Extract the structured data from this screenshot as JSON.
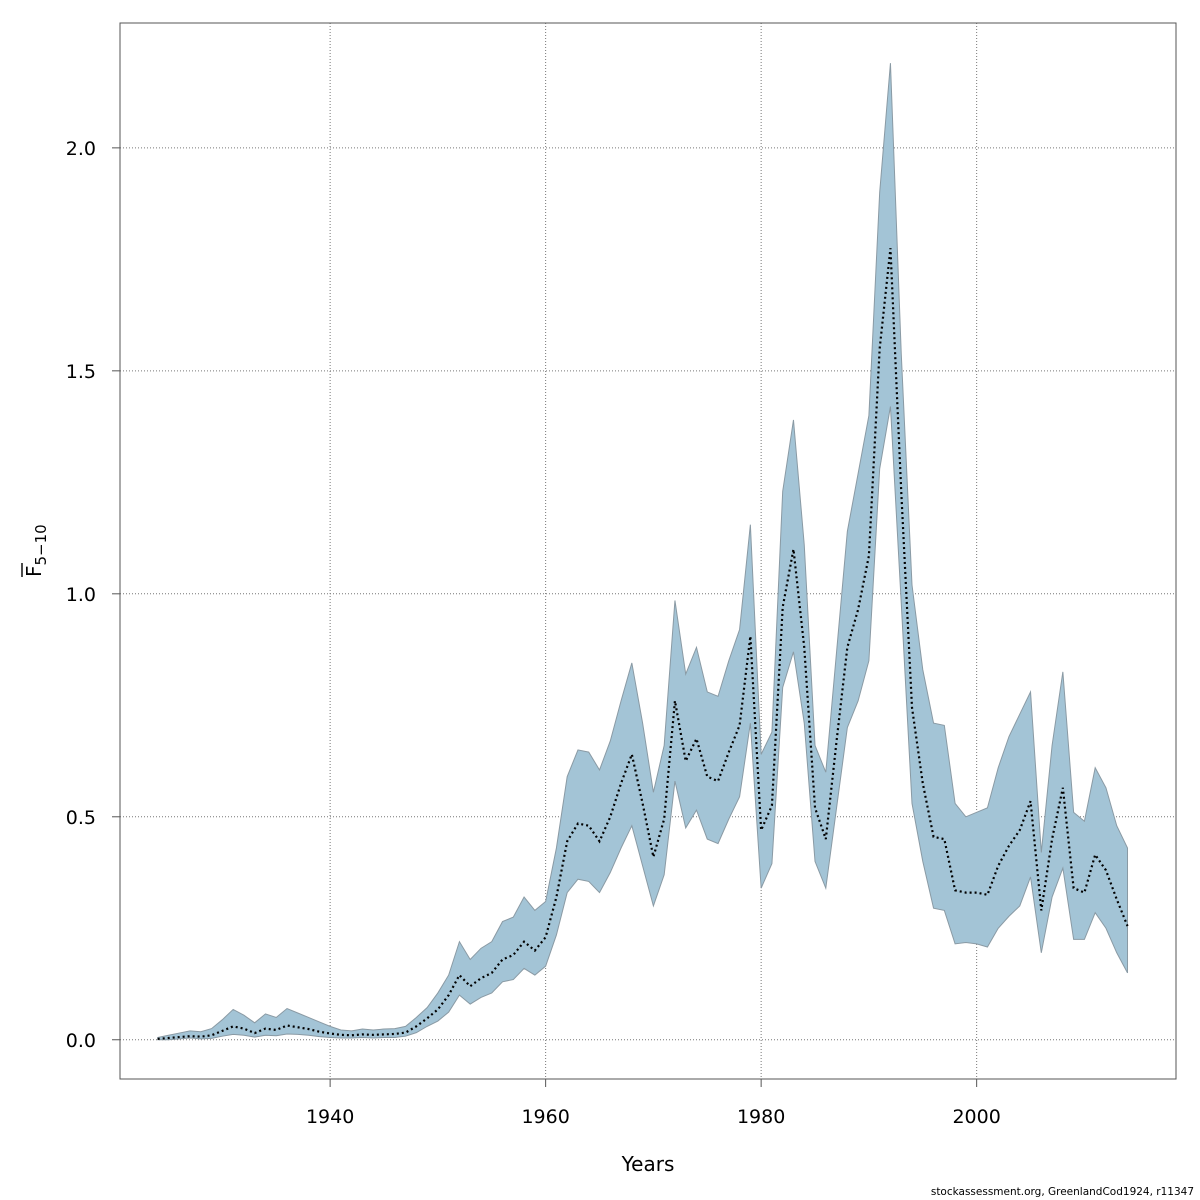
{
  "chart_data": {
    "type": "area",
    "xlabel": "Years",
    "ylabel_main": "F",
    "ylabel_sub": "5−10",
    "xlim": [
      1920.5,
      2018.5
    ],
    "ylim": [
      -0.088,
      2.28
    ],
    "x_ticks": [
      1940,
      1960,
      1980,
      2000
    ],
    "y_ticks": [
      0.0,
      0.5,
      1.0,
      1.5,
      2.0
    ],
    "x_tick_labels": [
      "1940",
      "1960",
      "1980",
      "2000"
    ],
    "y_tick_labels": [
      "0.0",
      "0.5",
      "1.0",
      "1.5",
      "2.0"
    ],
    "grid": true,
    "band_color": "#a3c4d6",
    "band_edge_color": "#8a9aa4",
    "line_color": "#000000",
    "series": [
      {
        "kind": "band",
        "x": [
          1924,
          1925,
          1926,
          1927,
          1928,
          1929,
          1930,
          1931,
          1932,
          1933,
          1934,
          1935,
          1936,
          1937,
          1938,
          1939,
          1940,
          1941,
          1942,
          1943,
          1944,
          1945,
          1946,
          1947,
          1948,
          1949,
          1950,
          1951,
          1952,
          1953,
          1954,
          1955,
          1956,
          1957,
          1958,
          1959,
          1960,
          1961,
          1962,
          1963,
          1964,
          1965,
          1966,
          1967,
          1968,
          1969,
          1970,
          1971,
          1972,
          1973,
          1974,
          1975,
          1976,
          1977,
          1978,
          1979,
          1980,
          1981,
          1982,
          1983,
          1984,
          1985,
          1986,
          1987,
          1988,
          1989,
          1990,
          1991,
          1992,
          1993,
          1994,
          1995,
          1996,
          1997,
          1998,
          1999,
          2000,
          2001,
          2002,
          2003,
          2004,
          2005,
          2006,
          2007,
          2008,
          2009,
          2010,
          2011,
          2012,
          2013,
          2014
        ],
        "upper": [
          0.005,
          0.01,
          0.015,
          0.02,
          0.018,
          0.025,
          0.045,
          0.068,
          0.055,
          0.038,
          0.058,
          0.05,
          0.07,
          0.06,
          0.05,
          0.04,
          0.03,
          0.022,
          0.02,
          0.024,
          0.022,
          0.024,
          0.025,
          0.03,
          0.05,
          0.072,
          0.105,
          0.145,
          0.22,
          0.18,
          0.205,
          0.22,
          0.265,
          0.275,
          0.32,
          0.29,
          0.31,
          0.43,
          0.59,
          0.65,
          0.645,
          0.605,
          0.67,
          0.76,
          0.845,
          0.71,
          0.555,
          0.66,
          0.985,
          0.82,
          0.88,
          0.78,
          0.77,
          0.85,
          0.92,
          1.155,
          0.64,
          0.69,
          1.23,
          1.39,
          1.11,
          0.66,
          0.6,
          0.87,
          1.14,
          1.27,
          1.4,
          1.9,
          2.19,
          1.54,
          1.02,
          0.83,
          0.71,
          0.705,
          0.53,
          0.5,
          0.51,
          0.52,
          0.61,
          0.68,
          0.73,
          0.78,
          0.42,
          0.66,
          0.825,
          0.51,
          0.49,
          0.61,
          0.565,
          0.48,
          0.43
        ],
        "lower": [
          0.0,
          0.0,
          0.002,
          0.004,
          0.002,
          0.003,
          0.008,
          0.012,
          0.01,
          0.006,
          0.01,
          0.009,
          0.013,
          0.012,
          0.01,
          0.007,
          0.005,
          0.004,
          0.004,
          0.005,
          0.004,
          0.005,
          0.005,
          0.008,
          0.016,
          0.03,
          0.042,
          0.062,
          0.1,
          0.08,
          0.095,
          0.105,
          0.13,
          0.135,
          0.16,
          0.145,
          0.165,
          0.235,
          0.33,
          0.36,
          0.355,
          0.33,
          0.375,
          0.43,
          0.48,
          0.39,
          0.3,
          0.37,
          0.58,
          0.475,
          0.515,
          0.45,
          0.44,
          0.495,
          0.545,
          0.71,
          0.34,
          0.395,
          0.79,
          0.87,
          0.71,
          0.4,
          0.34,
          0.52,
          0.7,
          0.76,
          0.85,
          1.28,
          1.42,
          0.98,
          0.53,
          0.4,
          0.295,
          0.29,
          0.215,
          0.218,
          0.215,
          0.208,
          0.25,
          0.277,
          0.3,
          0.365,
          0.195,
          0.32,
          0.385,
          0.225,
          0.225,
          0.285,
          0.25,
          0.195,
          0.15
        ]
      },
      {
        "kind": "line",
        "style": "dotted",
        "x": [
          1924,
          1925,
          1926,
          1927,
          1928,
          1929,
          1930,
          1931,
          1932,
          1933,
          1934,
          1935,
          1936,
          1937,
          1938,
          1939,
          1940,
          1941,
          1942,
          1943,
          1944,
          1945,
          1946,
          1947,
          1948,
          1949,
          1950,
          1951,
          1952,
          1953,
          1954,
          1955,
          1956,
          1957,
          1958,
          1959,
          1960,
          1961,
          1962,
          1963,
          1964,
          1965,
          1966,
          1967,
          1968,
          1969,
          1970,
          1971,
          1972,
          1973,
          1974,
          1975,
          1976,
          1977,
          1978,
          1979,
          1980,
          1981,
          1982,
          1983,
          1984,
          1985,
          1986,
          1987,
          1988,
          1989,
          1990,
          1991,
          1992,
          1993,
          1994,
          1995,
          1996,
          1997,
          1998,
          1999,
          2000,
          2001,
          2002,
          2003,
          2004,
          2005,
          2006,
          2007,
          2008,
          2009,
          2010,
          2011,
          2012,
          2013,
          2014
        ],
        "values": [
          0.002,
          0.004,
          0.006,
          0.008,
          0.007,
          0.01,
          0.02,
          0.03,
          0.025,
          0.015,
          0.025,
          0.022,
          0.032,
          0.028,
          0.024,
          0.018,
          0.014,
          0.011,
          0.01,
          0.012,
          0.011,
          0.012,
          0.013,
          0.016,
          0.03,
          0.048,
          0.068,
          0.1,
          0.145,
          0.12,
          0.138,
          0.15,
          0.18,
          0.19,
          0.22,
          0.2,
          0.23,
          0.32,
          0.445,
          0.485,
          0.48,
          0.445,
          0.5,
          0.575,
          0.64,
          0.53,
          0.41,
          0.495,
          0.76,
          0.625,
          0.675,
          0.59,
          0.58,
          0.645,
          0.705,
          0.905,
          0.47,
          0.525,
          0.97,
          1.1,
          0.88,
          0.52,
          0.45,
          0.67,
          0.88,
          0.965,
          1.085,
          1.55,
          1.775,
          1.23,
          0.745,
          0.575,
          0.455,
          0.45,
          0.335,
          0.33,
          0.33,
          0.325,
          0.39,
          0.435,
          0.47,
          0.535,
          0.29,
          0.45,
          0.565,
          0.34,
          0.33,
          0.415,
          0.38,
          0.315,
          0.255
        ]
      }
    ]
  },
  "footer": {
    "credit": "stockassessment.org, GreenlandCod1924, r11347"
  }
}
